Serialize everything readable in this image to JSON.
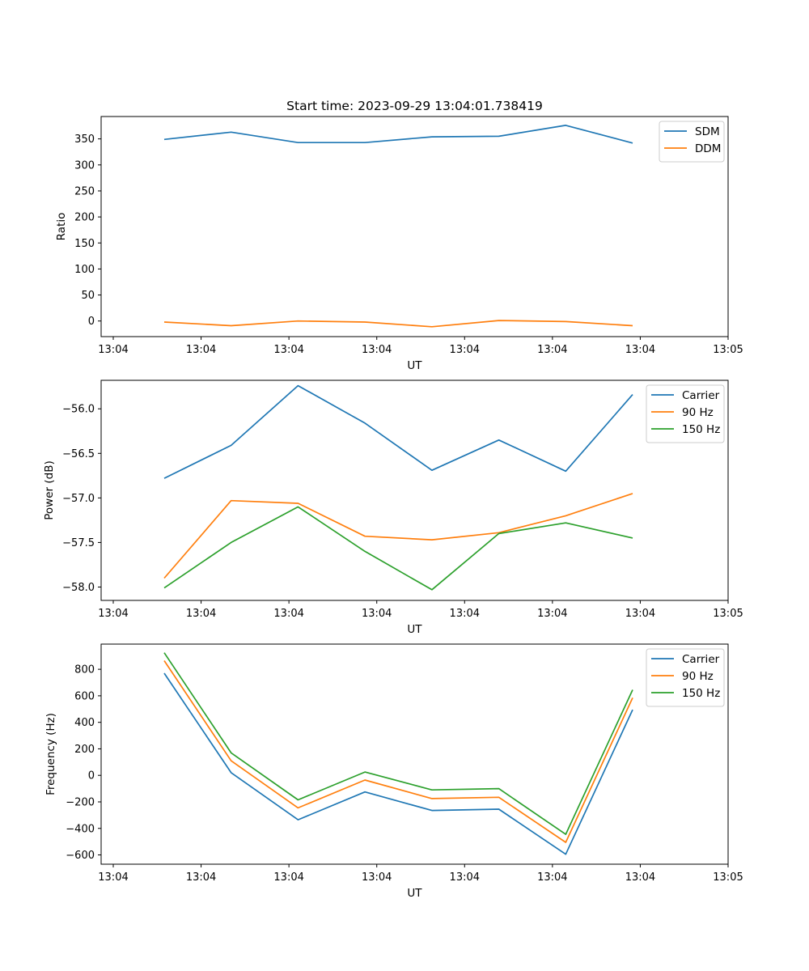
{
  "chart_data": [
    {
      "type": "line",
      "title": "Start time: 2023-09-29 13:04:01.738419",
      "xlabel": "UT",
      "ylabel": "Ratio",
      "x_tick_labels": [
        "13:04",
        "13:04",
        "13:04",
        "13:04",
        "13:04",
        "13:04",
        "13:04",
        "13:05"
      ],
      "ylim": [
        -30,
        393
      ],
      "yticks": [
        0,
        50,
        100,
        150,
        200,
        250,
        300,
        350
      ],
      "ytick_labels": [
        "0",
        "50",
        "100",
        "150",
        "200",
        "250",
        "300",
        "350"
      ],
      "xlim": [
        -0.5,
        11.5
      ],
      "x": [
        0.5,
        1.8,
        3.1,
        4.4,
        5.7,
        7.0,
        8.3,
        9.6
      ],
      "legend_loc": "upper right",
      "series": [
        {
          "name": "SDM",
          "color": "#1f77b4",
          "values": [
            349,
            363,
            343,
            343,
            354,
            355,
            376,
            342
          ]
        },
        {
          "name": "DDM",
          "color": "#ff7f0e",
          "values": [
            -2,
            -9,
            0,
            -2,
            -11,
            1,
            -1,
            -9
          ]
        }
      ]
    },
    {
      "type": "line",
      "title": "",
      "xlabel": "UT",
      "ylabel": "Power (dB)",
      "x_tick_labels": [
        "13:04",
        "13:04",
        "13:04",
        "13:04",
        "13:04",
        "13:04",
        "13:04",
        "13:05"
      ],
      "ylim": [
        -58.15,
        -55.68
      ],
      "yticks": [
        -58.0,
        -57.5,
        -57.0,
        -56.5,
        -56.0
      ],
      "ytick_labels": [
        "−58.0",
        "−57.5",
        "−57.0",
        "−56.5",
        "−56.0"
      ],
      "xlim": [
        -0.5,
        11.5
      ],
      "x": [
        0.5,
        1.8,
        3.1,
        4.4,
        5.7,
        7.0,
        8.3,
        9.6
      ],
      "legend_loc": "upper right",
      "series": [
        {
          "name": "Carrier",
          "color": "#1f77b4",
          "values": [
            -56.78,
            -56.41,
            -55.74,
            -56.16,
            -56.69,
            -56.35,
            -56.7,
            -55.84
          ]
        },
        {
          "name": "90 Hz",
          "color": "#ff7f0e",
          "values": [
            -57.9,
            -57.03,
            -57.06,
            -57.43,
            -57.47,
            -57.39,
            -57.2,
            -56.95
          ]
        },
        {
          "name": "150 Hz",
          "color": "#2ca02c",
          "values": [
            -58.01,
            -57.5,
            -57.1,
            -57.6,
            -58.03,
            -57.4,
            -57.28,
            -57.45
          ]
        }
      ]
    },
    {
      "type": "line",
      "title": "",
      "xlabel": "UT",
      "ylabel": "Frequency (Hz)",
      "x_tick_labels": [
        "13:04",
        "13:04",
        "13:04",
        "13:04",
        "13:04",
        "13:04",
        "13:04",
        "13:05"
      ],
      "ylim": [
        -670,
        990
      ],
      "yticks": [
        -600,
        -400,
        -200,
        0,
        200,
        400,
        600,
        800
      ],
      "ytick_labels": [
        "−600",
        "−400",
        "−200",
        "0",
        "200",
        "400",
        "600",
        "800"
      ],
      "xlim": [
        -0.5,
        11.5
      ],
      "x": [
        0.5,
        1.8,
        3.1,
        4.4,
        5.7,
        7.0,
        8.3,
        9.6
      ],
      "legend_loc": "upper right",
      "series": [
        {
          "name": "Carrier",
          "color": "#1f77b4",
          "values": [
            770,
            20,
            -335,
            -125,
            -265,
            -255,
            -595,
            495
          ]
        },
        {
          "name": "90 Hz",
          "color": "#ff7f0e",
          "values": [
            865,
            110,
            -245,
            -35,
            -175,
            -165,
            -505,
            585
          ]
        },
        {
          "name": "150 Hz",
          "color": "#2ca02c",
          "values": [
            925,
            170,
            -185,
            25,
            -110,
            -100,
            -445,
            645
          ]
        }
      ]
    }
  ]
}
